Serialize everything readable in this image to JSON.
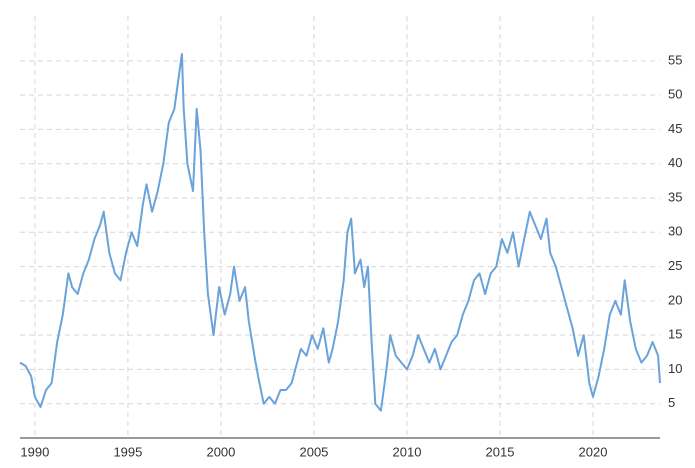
{
  "chart_data": {
    "type": "line",
    "x": [
      1989.2,
      1989.5,
      1989.8,
      1990.0,
      1990.3,
      1990.6,
      1990.9,
      1991.2,
      1991.5,
      1991.8,
      1992.0,
      1992.3,
      1992.6,
      1992.9,
      1993.2,
      1993.5,
      1993.7,
      1994.0,
      1994.3,
      1994.6,
      1994.9,
      1995.2,
      1995.5,
      1995.8,
      1996.0,
      1996.3,
      1996.6,
      1996.9,
      1997.2,
      1997.5,
      1997.7,
      1997.9,
      1998.0,
      1998.2,
      1998.5,
      1998.7,
      1998.9,
      1999.1,
      1999.3,
      1999.6,
      1999.9,
      2000.2,
      2000.5,
      2000.7,
      2001.0,
      2001.3,
      2001.5,
      2001.8,
      2002.0,
      2002.3,
      2002.6,
      2002.9,
      2003.2,
      2003.5,
      2003.8,
      2004.0,
      2004.3,
      2004.6,
      2004.9,
      2005.2,
      2005.5,
      2005.8,
      2006.0,
      2006.3,
      2006.6,
      2006.8,
      2007.0,
      2007.2,
      2007.5,
      2007.7,
      2007.9,
      2008.1,
      2008.3,
      2008.6,
      2008.9,
      2009.1,
      2009.4,
      2009.7,
      2010.0,
      2010.3,
      2010.6,
      2010.9,
      2011.2,
      2011.5,
      2011.8,
      2012.1,
      2012.4,
      2012.7,
      2013.0,
      2013.3,
      2013.6,
      2013.9,
      2014.2,
      2014.5,
      2014.8,
      2015.1,
      2015.4,
      2015.7,
      2016.0,
      2016.3,
      2016.6,
      2016.9,
      2017.2,
      2017.5,
      2017.7,
      2018.0,
      2018.3,
      2018.6,
      2018.9,
      2019.2,
      2019.5,
      2019.8,
      2020.0,
      2020.3,
      2020.6,
      2020.9,
      2021.2,
      2021.5,
      2021.7,
      2022.0,
      2022.3,
      2022.6,
      2022.9,
      2023.2,
      2023.5,
      2023.6
    ],
    "series": [
      {
        "color": "#6aa3d9",
        "values": [
          11,
          10.5,
          9,
          6,
          4.5,
          7,
          8,
          14,
          18,
          24,
          22,
          21,
          24,
          26,
          29,
          31,
          33,
          27,
          24,
          23,
          27,
          30,
          28,
          34,
          37,
          33,
          36,
          40,
          46,
          48,
          52,
          56,
          48,
          40,
          36,
          48,
          42,
          30,
          21,
          15,
          22,
          18,
          21,
          25,
          20,
          22,
          17,
          12,
          9,
          5,
          6,
          5,
          7,
          7,
          8,
          10,
          13,
          12,
          15,
          13,
          16,
          11,
          13,
          17,
          23,
          30,
          32,
          24,
          26,
          22,
          25,
          14,
          5,
          4,
          10,
          15,
          12,
          11,
          10,
          12,
          15,
          13,
          11,
          13,
          10,
          12,
          14,
          15,
          18,
          20,
          23,
          24,
          21,
          24,
          25,
          29,
          27,
          30,
          25,
          29,
          33,
          31,
          29,
          32,
          27,
          25,
          22,
          19,
          16,
          12,
          15,
          8,
          6,
          9,
          13,
          18,
          20,
          18,
          23,
          17,
          13,
          11,
          12,
          14,
          12,
          8
        ]
      }
    ],
    "xlim": [
      1989.2,
      2023.6
    ],
    "xticks": [
      1990,
      1995,
      2000,
      2005,
      2010,
      2015,
      2020
    ],
    "ylim": [
      0,
      63
    ],
    "yticks": [
      5,
      10,
      15,
      20,
      25,
      30,
      35,
      40,
      45,
      50,
      55
    ],
    "grid": true
  }
}
